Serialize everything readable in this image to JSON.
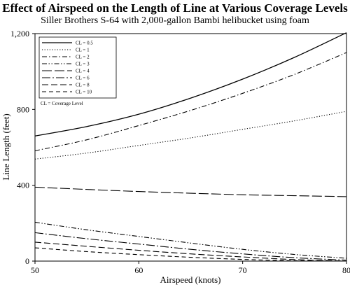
{
  "chart_data": {
    "type": "line",
    "title": "Effect of Airspeed on the Length of Line at Various Coverage Levels",
    "subtitle": "Siller Brothers S-64 with 2,000-gallon Bambi helibucket using foam",
    "xlabel": "Airspeed (knots)",
    "ylabel": "Line Length (feet)",
    "xlim": [
      50,
      80
    ],
    "ylim": [
      0,
      1200
    ],
    "x_ticks": [
      "50",
      "60",
      "70",
      "80"
    ],
    "y_ticks": [
      "0",
      "400",
      "800",
      "1,200"
    ],
    "grid": false,
    "legend_position": "top-left",
    "legend_note": "CL = Coverage Level",
    "x": [
      50,
      55,
      60,
      65,
      70,
      75,
      80
    ],
    "series": [
      {
        "name": "CL = 0.5",
        "dash": "solid",
        "values": [
          660,
          710,
          775,
          860,
          960,
          1075,
          1205
        ]
      },
      {
        "name": "CL = 1",
        "dash": "dotted",
        "values": [
          538,
          570,
          610,
          650,
          695,
          740,
          790
        ]
      },
      {
        "name": "CL = 2",
        "dash": "dash-dot",
        "values": [
          582,
          640,
          715,
          795,
          885,
          985,
          1100
        ]
      },
      {
        "name": "CL = 3",
        "dash": "dash-dot-dot",
        "values": [
          205,
          165,
          130,
          95,
          62,
          35,
          15
        ]
      },
      {
        "name": "CL = 4",
        "dash": "long-dash",
        "values": [
          390,
          378,
          367,
          358,
          350,
          345,
          340
        ]
      },
      {
        "name": "CL = 6",
        "dash": "long-dash-dot",
        "values": [
          150,
          118,
          90,
          62,
          38,
          18,
          5
        ]
      },
      {
        "name": "CL = 8",
        "dash": "dash",
        "values": [
          100,
          78,
          57,
          38,
          22,
          8,
          0
        ]
      },
      {
        "name": "CL = 10",
        "dash": "short-dash",
        "values": [
          70,
          50,
          34,
          20,
          9,
          2,
          0
        ]
      }
    ]
  }
}
